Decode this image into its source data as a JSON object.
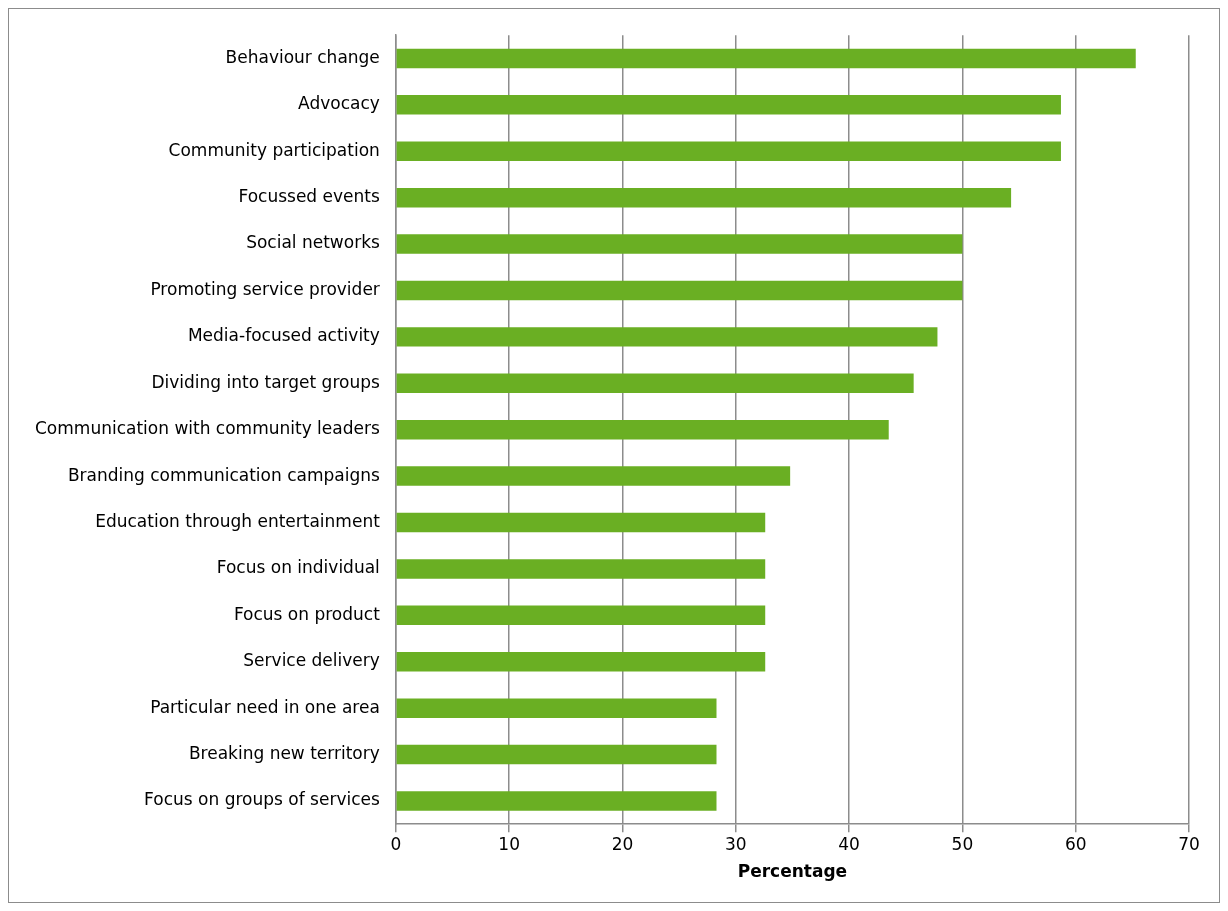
{
  "chart_data": {
    "type": "bar",
    "orientation": "horizontal",
    "xlabel": "Percentage",
    "categories": [
      "Behaviour change",
      "Advocacy",
      "Community participation",
      "Focussed events",
      "Social networks",
      "Promoting service provider",
      "Media-focused activity",
      "Dividing into target groups",
      "Communication with community leaders",
      "Branding communication campaigns",
      "Education through entertainment",
      "Focus on individual",
      "Focus on product",
      "Service delivery",
      "Particular need in one area",
      "Breaking new territory",
      "Focus on groups of services"
    ],
    "values": [
      65.3,
      58.7,
      58.7,
      54.3,
      50,
      50,
      47.8,
      45.7,
      43.5,
      34.8,
      32.6,
      32.6,
      32.6,
      32.6,
      28.3,
      28.3,
      28.3
    ],
    "color": "#6aaf23",
    "xlim": [
      0,
      70
    ],
    "xticks": [
      0,
      10,
      20,
      30,
      40,
      50,
      60,
      70
    ],
    "grid": "x",
    "legend": false
  }
}
